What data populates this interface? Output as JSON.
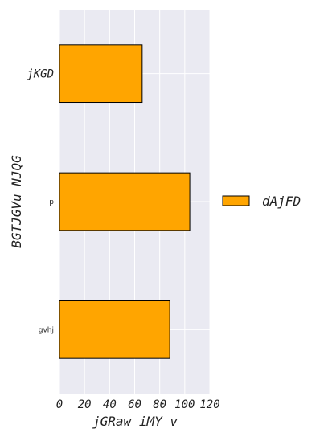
{
  "chart_data": {
    "type": "bar",
    "orientation": "horizontal",
    "categories": [
      "jKGD",
      "p",
      "gvhj"
    ],
    "series": [
      {
        "name": "dAjFD",
        "values": [
          66,
          104,
          88
        ],
        "color": "#FFA500"
      }
    ],
    "xlabel": "jGRaw iMY v",
    "ylabel": "BGTJGVu NJQG",
    "xlim": [
      0,
      120
    ],
    "xticks": [
      0,
      20,
      40,
      60,
      80,
      100,
      120
    ],
    "grid": true,
    "legend_position": "right",
    "colors": {
      "plot_bg": "#EAEAF2",
      "grid": "#FFFFFF",
      "edge": "#000000"
    }
  }
}
